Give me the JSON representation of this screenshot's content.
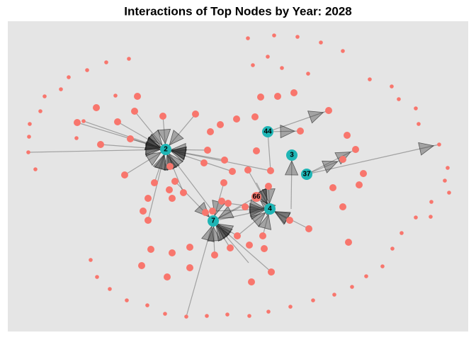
{
  "title": "Interactions of Top Nodes by Year: 2028",
  "nodes": [
    {
      "label": "2"
    },
    {
      "label": "44"
    },
    {
      "label": "3"
    },
    {
      "label": "37"
    },
    {
      "label": "66"
    },
    {
      "label": "4"
    },
    {
      "label": "7"
    }
  ]
}
